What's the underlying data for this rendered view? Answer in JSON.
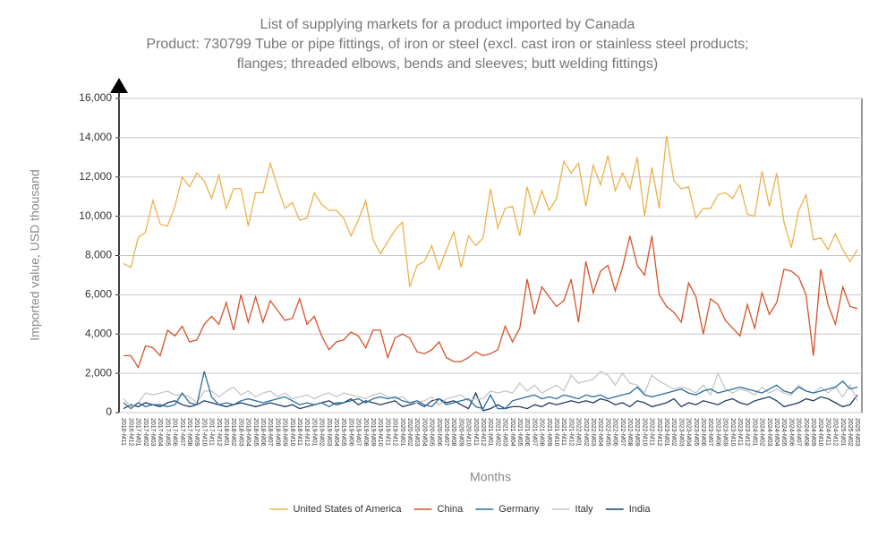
{
  "chart_data": {
    "type": "line",
    "title": "List of supplying markets for a product imported by Canada",
    "subtitle": [
      "Product: 730799 Tube or pipe fittings, of iron or steel (excl. cast iron or stainless steel products;",
      "flanges; threaded elbows, bends and sleeves; butt welding fittings)"
    ],
    "x_label": "Months",
    "y_label": "Imported value, USD thousand",
    "categories": [
      "2016-M11",
      "2016-M12",
      "2017-M01",
      "2017-M02",
      "2017-M03",
      "2017-M04",
      "2017-M05",
      "2017-M06",
      "2017-M07",
      "2017-M08",
      "2017-M09",
      "2017-M10",
      "2017-M11",
      "2017-M12",
      "2018-M01",
      "2018-M02",
      "2018-M03",
      "2018-M04",
      "2018-M05",
      "2018-M06",
      "2018-M07",
      "2018-M08",
      "2018-M09",
      "2018-M10",
      "2018-M11",
      "2018-M12",
      "2019-M01",
      "2019-M02",
      "2019-M03",
      "2019-M04",
      "2019-M05",
      "2019-M06",
      "2019-M07",
      "2019-M08",
      "2019-M09",
      "2019-M10",
      "2019-M11",
      "2019-M12",
      "2020-M01",
      "2020-M02",
      "2020-M03",
      "2020-M04",
      "2020-M05",
      "2020-M06",
      "2020-M07",
      "2020-M08",
      "2020-M09",
      "2020-M10",
      "2020-M11",
      "2020-M12",
      "2021-M01",
      "2021-M02",
      "2021-M03",
      "2021-M04",
      "2021-M05",
      "2021-M06",
      "2021-M07",
      "2021-M08",
      "2021-M09",
      "2021-M10",
      "2021-M11",
      "2021-M12",
      "2022-M01",
      "2022-M02",
      "2022-M03",
      "2022-M04",
      "2022-M05",
      "2022-M06",
      "2022-M07",
      "2022-M08",
      "2022-M09",
      "2022-M10",
      "2022-M11",
      "2022-M12",
      "2023-M01",
      "2023-M02",
      "2023-M03",
      "2023-M04",
      "2023-M05",
      "2023-M06",
      "2023-M07",
      "2023-M08",
      "2023-M09",
      "2023-M10",
      "2023-M11",
      "2023-M12",
      "2024-M01",
      "2024-M02",
      "2024-M03",
      "2024-M04",
      "2024-M05",
      "2024-M06",
      "2024-M07",
      "2024-M08",
      "2024-M09",
      "2024-M10",
      "2024-M11",
      "2024-M12",
      "2025-M01",
      "2025-M02",
      "2025-M03"
    ],
    "series": [
      {
        "name": "United States of America",
        "color": "#ebb24d",
        "values": [
          7600,
          7400,
          8900,
          9200,
          10800,
          9600,
          9500,
          10500,
          12000,
          11500,
          12200,
          11800,
          10900,
          12100,
          10400,
          11400,
          11400,
          9500,
          11200,
          11200,
          12700,
          11500,
          10400,
          10700,
          9800,
          9900,
          11200,
          10600,
          10300,
          10300,
          9900,
          9000,
          9800,
          10800,
          8800,
          8100,
          8700,
          9300,
          9700,
          6400,
          7500,
          7700,
          8500,
          7300,
          8300,
          9200,
          7400,
          9000,
          8500,
          8900,
          11400,
          9400,
          10400,
          10500,
          9000,
          11500,
          10100,
          11300,
          10300,
          10900,
          12800,
          12200,
          12700,
          10500,
          12600,
          11600,
          13100,
          11300,
          12200,
          11400,
          13000,
          10000,
          12500,
          10400,
          14100,
          11800,
          11400,
          11500,
          9900,
          10400,
          10400,
          11100,
          11200,
          10900,
          11600,
          10100,
          10000,
          12300,
          10500,
          12200,
          9700,
          8400,
          10300,
          11100,
          8800,
          8900,
          8300,
          9100,
          8300,
          7700,
          8300
        ]
      },
      {
        "name": "China",
        "color": "#d4532b",
        "values": [
          2900,
          2900,
          2300,
          3400,
          3300,
          2900,
          4200,
          3900,
          4400,
          3600,
          3700,
          4500,
          4900,
          4500,
          5600,
          4200,
          6000,
          4600,
          5900,
          4600,
          5700,
          5200,
          4700,
          4800,
          5800,
          4500,
          4900,
          3900,
          3200,
          3600,
          3700,
          4100,
          3900,
          3300,
          4200,
          4200,
          2800,
          3800,
          4000,
          3800,
          3100,
          3000,
          3200,
          3600,
          2800,
          2600,
          2600,
          2800,
          3100,
          2900,
          3000,
          3200,
          4400,
          3600,
          4300,
          6800,
          5000,
          6400,
          5900,
          5400,
          5700,
          6800,
          4600,
          7700,
          6100,
          7200,
          7500,
          6200,
          7400,
          9000,
          7500,
          7000,
          9000,
          6000,
          5400,
          5100,
          4600,
          6600,
          5900,
          4000,
          5800,
          5500,
          4700,
          4300,
          3900,
          5500,
          4300,
          6100,
          5000,
          5600,
          7300,
          7200,
          6900,
          6000,
          2900,
          7300,
          5500,
          4500,
          6400,
          5400,
          5300
        ]
      },
      {
        "name": "Germany",
        "color": "#2a6e9c",
        "values": [
          500,
          200,
          500,
          300,
          400,
          400,
          300,
          400,
          1000,
          500,
          400,
          2100,
          800,
          400,
          500,
          400,
          600,
          700,
          600,
          500,
          600,
          700,
          800,
          600,
          400,
          500,
          400,
          500,
          300,
          500,
          500,
          600,
          700,
          500,
          700,
          800,
          700,
          800,
          600,
          500,
          600,
          400,
          300,
          700,
          400,
          500,
          600,
          700,
          300,
          200,
          900,
          200,
          200,
          600,
          700,
          800,
          900,
          700,
          800,
          700,
          900,
          800,
          700,
          900,
          800,
          900,
          700,
          800,
          900,
          1000,
          1300,
          900,
          800,
          900,
          1000,
          1100,
          1200,
          1000,
          900,
          1100,
          1200,
          1000,
          1100,
          1200,
          1300,
          1200,
          1100,
          1000,
          1200,
          1400,
          1100,
          1000,
          1300,
          1100,
          1000,
          1100,
          1200,
          1300,
          1600,
          1200,
          1300
        ]
      },
      {
        "name": "Italy",
        "color": "#c6c6c6",
        "values": [
          700,
          300,
          500,
          1000,
          900,
          1000,
          1100,
          900,
          900,
          800,
          500,
          1100,
          1100,
          800,
          1100,
          1300,
          900,
          1100,
          800,
          1000,
          1100,
          800,
          1000,
          700,
          800,
          900,
          700,
          900,
          1000,
          800,
          1000,
          900,
          800,
          700,
          900,
          1000,
          800,
          700,
          800,
          500,
          500,
          600,
          800,
          400,
          700,
          800,
          900,
          600,
          700,
          700,
          1100,
          1000,
          1100,
          1000,
          1500,
          1100,
          1400,
          1000,
          1200,
          1400,
          1100,
          1900,
          1500,
          1600,
          1700,
          2100,
          1900,
          1400,
          2000,
          1500,
          1400,
          1000,
          1900,
          1600,
          1400,
          1200,
          1300,
          1200,
          1000,
          1400,
          900,
          2000,
          1200,
          1000,
          1200,
          1100,
          900,
          1300,
          1000,
          1200,
          1000,
          900,
          1400,
          1100,
          1000,
          1300,
          1000,
          1300,
          800,
          1400,
          600
        ]
      },
      {
        "name": "India",
        "color": "#1e3a64",
        "values": [
          200,
          400,
          300,
          500,
          400,
          300,
          500,
          600,
          400,
          300,
          400,
          600,
          500,
          400,
          300,
          400,
          500,
          400,
          300,
          400,
          500,
          400,
          300,
          400,
          200,
          300,
          400,
          500,
          600,
          400,
          500,
          700,
          400,
          600,
          500,
          400,
          500,
          600,
          300,
          400,
          500,
          300,
          600,
          700,
          500,
          600,
          400,
          200,
          1000,
          100,
          200,
          400,
          200,
          300,
          300,
          200,
          400,
          300,
          500,
          400,
          500,
          600,
          500,
          600,
          500,
          700,
          600,
          400,
          500,
          300,
          600,
          500,
          300,
          400,
          500,
          700,
          300,
          500,
          400,
          600,
          500,
          400,
          600,
          700,
          500,
          400,
          600,
          700,
          800,
          600,
          300,
          400,
          500,
          700,
          600,
          800,
          700,
          500,
          300,
          400,
          900
        ]
      }
    ],
    "ylim": [
      0,
      16000
    ],
    "yticks": [
      0,
      {
        "value": 2000,
        "label": "2,000"
      },
      {
        "value": 4000,
        "label": "4,000"
      },
      {
        "value": 6000,
        "label": "6,000"
      },
      {
        "value": 8000,
        "label": "8,000"
      },
      {
        "value": 10000,
        "label": "10,000"
      },
      {
        "value": 12000,
        "label": "12,000"
      },
      {
        "value": 14000,
        "label": "14,000"
      },
      {
        "value": 16000,
        "label": "16,000"
      }
    ],
    "grid": true,
    "legend": "bottom"
  }
}
